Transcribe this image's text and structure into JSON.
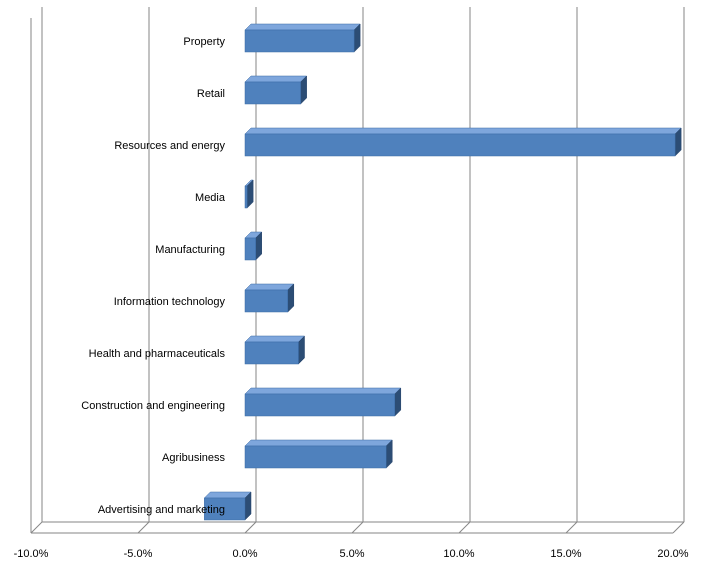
{
  "chart_data": {
    "type": "bar",
    "orientation": "horizontal",
    "style": "3d",
    "categories": [
      "Property",
      "Retail",
      "Resources and energy",
      "Media",
      "Manufacturing",
      "Information technology",
      "Health and pharmaceuticals",
      "Construction and engineering",
      "Agribusiness",
      "Advertising and marketing"
    ],
    "series": [
      {
        "values": [
          5.1,
          2.6,
          20.1,
          0.1,
          0.5,
          2.0,
          2.5,
          7.0,
          6.6,
          -1.9
        ]
      }
    ],
    "title": "",
    "xlabel": "",
    "ylabel": "",
    "xlim": [
      -10,
      20
    ],
    "x_ticks": [
      -10,
      -5,
      0,
      5,
      10,
      15,
      20
    ],
    "x_tick_labels": [
      "-10.0%",
      "-5.0%",
      "0.0%",
      "5.0%",
      "10.0%",
      "15.0%",
      "20.0%"
    ],
    "grid": true,
    "legend": "none",
    "colors": {
      "bar_front": "#4f81bd",
      "bar_top": "#7ea6dc",
      "bar_side": "#2c4d75",
      "gridline": "#868686"
    }
  }
}
